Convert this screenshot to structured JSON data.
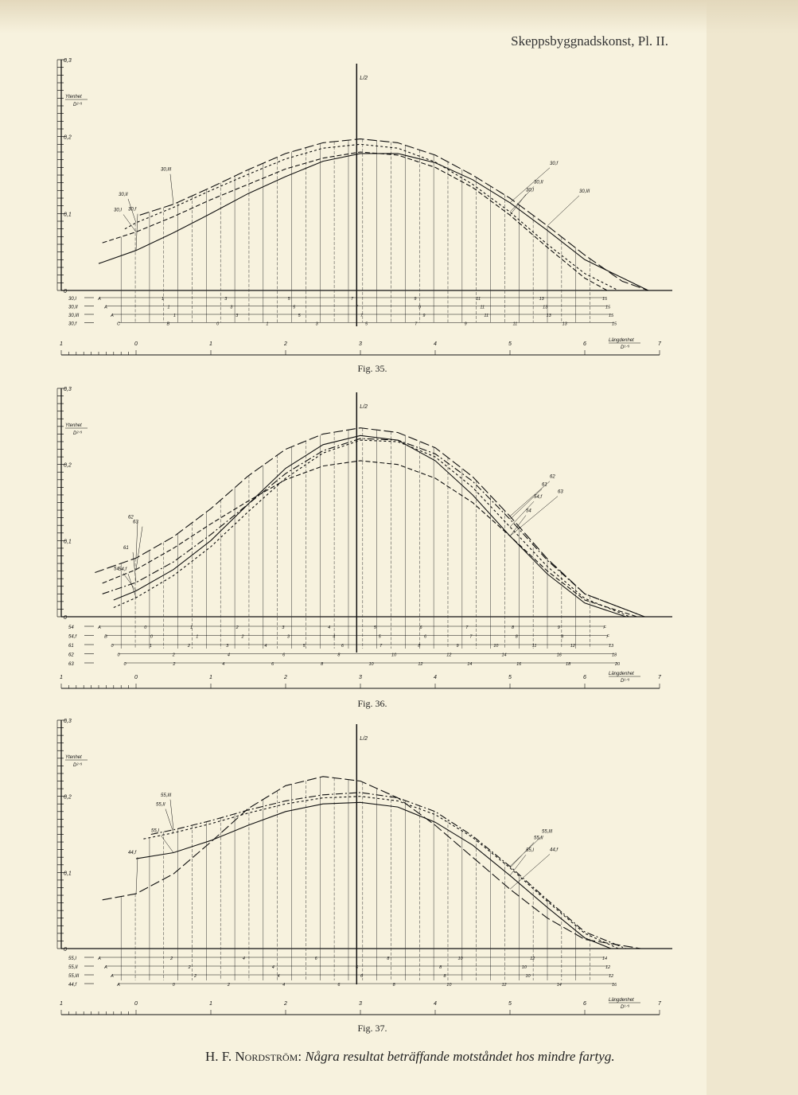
{
  "header": "Skeppsbyggnadskonst, Pl. II.",
  "footer": {
    "author": "H. F. Nordström:",
    "title": "Några resultat beträffande motståndet hos mindre fartyg."
  },
  "chart_data": [
    {
      "type": "line",
      "figure": "Fig. 35.",
      "ylabel": "Ytenhet",
      "ylabel_unit": "D²ᐟ³",
      "xlabel": "Längdenhet",
      "xlabel_unit": "D¹ᐟ³",
      "midship_label": "L/2",
      "yticks": [
        "0",
        "0,1",
        "0,2",
        "0,3"
      ],
      "ylim": [
        0,
        0.3
      ],
      "xticks": [
        "1",
        "0",
        "1",
        "2",
        "3",
        "4",
        "5",
        "6",
        "7"
      ],
      "xlim": [
        -1,
        7
      ],
      "midship_x": 2.95,
      "station_rows": [
        {
          "label": "30,I",
          "marks": [
            "A",
            "1",
            "3",
            "5",
            "7",
            "9",
            "11",
            "13",
            "15"
          ]
        },
        {
          "label": "30,II",
          "marks": [
            "A",
            "1",
            "3",
            "5",
            "7",
            "9",
            "11",
            "13",
            "15"
          ]
        },
        {
          "label": "30,III",
          "marks": [
            "A",
            "1",
            "3",
            "5",
            "7",
            "9",
            "11",
            "13",
            "15"
          ]
        },
        {
          "label": "30,f",
          "marks": [
            "C",
            "B",
            "0",
            "1",
            "3",
            "5",
            "7",
            "9",
            "11",
            "13",
            "15"
          ]
        }
      ],
      "series": [
        {
          "name": "30,I",
          "style": "dashed",
          "x": [
            -0.45,
            0,
            0.5,
            1,
            1.5,
            2,
            2.5,
            3,
            3.5,
            4,
            4.5,
            5,
            5.5,
            6,
            6.3
          ],
          "y": [
            0.062,
            0.076,
            0.096,
            0.118,
            0.138,
            0.158,
            0.172,
            0.18,
            0.176,
            0.16,
            0.134,
            0.098,
            0.056,
            0.016,
            0.0
          ]
        },
        {
          "name": "30,II",
          "style": "short-dash",
          "x": [
            -0.15,
            0,
            0.5,
            1,
            1.5,
            2,
            2.5,
            3,
            3.5,
            4,
            4.5,
            5,
            5.5,
            6,
            6.45
          ],
          "y": [
            0.08,
            0.088,
            0.108,
            0.13,
            0.151,
            0.171,
            0.185,
            0.19,
            0.185,
            0.167,
            0.138,
            0.102,
            0.06,
            0.022,
            0.0
          ]
        },
        {
          "name": "30,III",
          "style": "long-dash",
          "x": [
            0.05,
            0.5,
            1,
            1.5,
            2,
            2.5,
            3,
            3.5,
            4,
            4.5,
            5,
            5.5,
            6,
            6.5,
            6.85
          ],
          "y": [
            0.098,
            0.112,
            0.134,
            0.157,
            0.178,
            0.192,
            0.197,
            0.192,
            0.176,
            0.15,
            0.12,
            0.084,
            0.046,
            0.012,
            0.0
          ]
        },
        {
          "name": "30,f",
          "style": "solid",
          "x": [
            -0.5,
            0,
            0.5,
            1,
            1.5,
            2,
            2.5,
            3,
            3.5,
            4,
            4.5,
            5,
            5.5,
            6,
            6.85
          ],
          "y": [
            0.035,
            0.052,
            0.075,
            0.1,
            0.126,
            0.148,
            0.168,
            0.178,
            0.178,
            0.166,
            0.144,
            0.114,
            0.078,
            0.04,
            0.0
          ]
        }
      ]
    },
    {
      "type": "line",
      "figure": "Fig. 36.",
      "ylabel": "Ytenhet",
      "ylabel_unit": "D²ᐟ³",
      "xlabel": "Längdenhet",
      "xlabel_unit": "D¹ᐟ³",
      "midship_label": "L/2",
      "yticks": [
        "0",
        "0,1",
        "0,2",
        "0,3"
      ],
      "ylim": [
        0,
        0.3
      ],
      "xticks": [
        "1",
        "0",
        "1",
        "2",
        "3",
        "4",
        "5",
        "6",
        "7"
      ],
      "xlim": [
        -1,
        7
      ],
      "midship_x": 2.95,
      "station_rows": [
        {
          "label": "54",
          "marks": [
            "A",
            "0",
            "1",
            "2",
            "3",
            "4",
            "5",
            "6",
            "7",
            "8",
            "9",
            "F"
          ]
        },
        {
          "label": "54,f",
          "marks": [
            "B",
            "0",
            "1",
            "2",
            "3",
            "4",
            "5",
            "6",
            "7",
            "8",
            "9",
            "F"
          ]
        },
        {
          "label": "61",
          "marks": [
            "0",
            "1",
            "2",
            "3",
            "4",
            "5",
            "6",
            "7",
            "8",
            "9",
            "10",
            "11",
            "12",
            "13"
          ]
        },
        {
          "label": "62",
          "marks": [
            "0",
            "2",
            "4",
            "6",
            "8",
            "10",
            "12",
            "14",
            "16",
            "18"
          ]
        },
        {
          "label": "63",
          "marks": [
            "0",
            "2",
            "4",
            "6",
            "8",
            "10",
            "12",
            "14",
            "16",
            "18",
            "20"
          ]
        }
      ],
      "series": [
        {
          "name": "54",
          "style": "solid",
          "x": [
            -0.3,
            0,
            0.5,
            1,
            1.5,
            2,
            2.5,
            3,
            3.5,
            4,
            4.5,
            5,
            5.5,
            6,
            6.55
          ],
          "y": [
            0.022,
            0.034,
            0.062,
            0.1,
            0.148,
            0.195,
            0.226,
            0.238,
            0.232,
            0.205,
            0.16,
            0.106,
            0.056,
            0.018,
            0.0
          ]
        },
        {
          "name": "54,f",
          "style": "short-dash",
          "x": [
            -0.3,
            0,
            0.5,
            1,
            1.5,
            2,
            2.5,
            3,
            3.5,
            4,
            4.5,
            5,
            5.5,
            6,
            6.6
          ],
          "y": [
            0.012,
            0.025,
            0.054,
            0.092,
            0.138,
            0.182,
            0.215,
            0.232,
            0.23,
            0.21,
            0.17,
            0.118,
            0.066,
            0.024,
            0.0
          ]
        },
        {
          "name": "61",
          "style": "dash-dot",
          "x": [
            -0.45,
            0,
            0.5,
            1,
            1.5,
            2,
            2.5,
            3,
            3.5,
            4,
            4.5,
            5,
            5.5,
            6,
            6.8
          ],
          "y": [
            0.03,
            0.045,
            0.072,
            0.108,
            0.148,
            0.188,
            0.218,
            0.234,
            0.232,
            0.214,
            0.178,
            0.128,
            0.074,
            0.03,
            0.0
          ]
        },
        {
          "name": "62",
          "style": "long-dash",
          "x": [
            -0.55,
            0,
            0.5,
            1,
            1.5,
            2,
            2.5,
            3,
            3.5,
            4,
            4.5,
            5,
            5.5,
            6,
            6.8
          ],
          "y": [
            0.058,
            0.077,
            0.105,
            0.142,
            0.185,
            0.22,
            0.24,
            0.248,
            0.242,
            0.222,
            0.184,
            0.132,
            0.076,
            0.03,
            0.0
          ]
        },
        {
          "name": "63",
          "style": "dashed",
          "x": [
            -0.45,
            0,
            0.5,
            1,
            1.5,
            2,
            2.5,
            3,
            3.5,
            4,
            4.5,
            5,
            5.5,
            6,
            6.7
          ],
          "y": [
            0.044,
            0.062,
            0.09,
            0.122,
            0.152,
            0.18,
            0.198,
            0.205,
            0.2,
            0.182,
            0.15,
            0.106,
            0.06,
            0.022,
            0.0
          ]
        }
      ]
    },
    {
      "type": "line",
      "figure": "Fig. 37.",
      "ylabel": "Ytenhet",
      "ylabel_unit": "D²ᐟ³",
      "xlabel": "Längdenhet",
      "xlabel_unit": "D¹ᐟ³",
      "midship_label": "L/2",
      "yticks": [
        "0",
        "0,1",
        "0,2",
        "0,3"
      ],
      "ylim": [
        0,
        0.3
      ],
      "xticks": [
        "1",
        "0",
        "1",
        "2",
        "3",
        "4",
        "5",
        "6",
        "7"
      ],
      "xlim": [
        -1,
        7
      ],
      "midship_x": 2.95,
      "station_rows": [
        {
          "label": "55,I",
          "marks": [
            "A",
            "2",
            "4",
            "6",
            "8",
            "10",
            "12",
            "14"
          ]
        },
        {
          "label": "55,II",
          "marks": [
            "A",
            "2",
            "4",
            "6",
            "8",
            "10",
            "12"
          ]
        },
        {
          "label": "55,III",
          "marks": [
            "A",
            "2",
            "4",
            "6",
            "8",
            "10",
            "12"
          ]
        },
        {
          "label": "44,f",
          "marks": [
            "A",
            "0",
            "2",
            "4",
            "6",
            "8",
            "10",
            "12",
            "14",
            "16"
          ]
        }
      ],
      "series": [
        {
          "name": "55,I",
          "style": "solid",
          "x": [
            0.0,
            0.5,
            1,
            1.5,
            2,
            2.5,
            3,
            3.5,
            4,
            4.5,
            5,
            5.5,
            6,
            6.35
          ],
          "y": [
            0.118,
            0.126,
            0.142,
            0.162,
            0.18,
            0.19,
            0.192,
            0.186,
            0.166,
            0.136,
            0.096,
            0.054,
            0.014,
            0.0
          ]
        },
        {
          "name": "55,II",
          "style": "short-dash",
          "x": [
            0.1,
            0.5,
            1,
            1.5,
            2,
            2.5,
            3,
            3.5,
            4,
            4.5,
            5,
            5.5,
            6,
            6.45
          ],
          "y": [
            0.144,
            0.152,
            0.164,
            0.178,
            0.19,
            0.198,
            0.2,
            0.194,
            0.176,
            0.146,
            0.106,
            0.062,
            0.02,
            0.0
          ]
        },
        {
          "name": "55,III",
          "style": "dash-dot",
          "x": [
            0.2,
            0.5,
            1,
            1.5,
            2,
            2.5,
            3,
            3.5,
            4,
            4.5,
            5,
            5.5,
            6,
            6.55
          ],
          "y": [
            0.15,
            0.156,
            0.168,
            0.182,
            0.194,
            0.202,
            0.205,
            0.198,
            0.18,
            0.148,
            0.108,
            0.064,
            0.022,
            0.0
          ]
        },
        {
          "name": "44,f",
          "style": "long-dash",
          "x": [
            -0.45,
            0,
            0.5,
            1,
            1.5,
            2,
            2.5,
            3,
            3.5,
            4,
            4.5,
            5,
            5.5,
            6,
            6.75
          ],
          "y": [
            0.064,
            0.072,
            0.098,
            0.14,
            0.184,
            0.214,
            0.226,
            0.22,
            0.198,
            0.162,
            0.12,
            0.078,
            0.04,
            0.012,
            0.0
          ]
        }
      ]
    }
  ]
}
